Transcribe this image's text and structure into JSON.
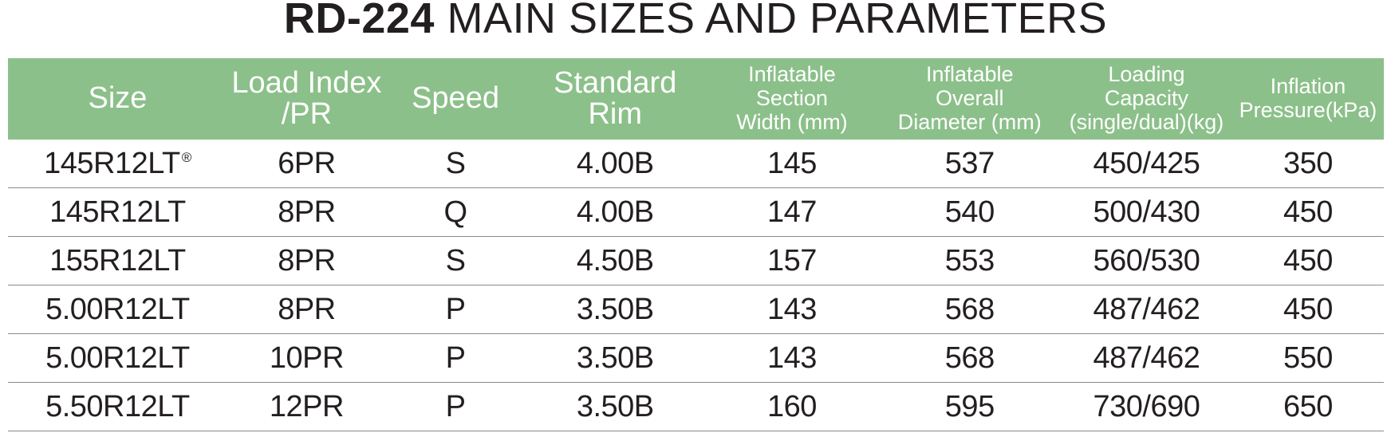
{
  "title": {
    "model": "RD-224",
    "rest": "MAIN SIZES AND PARAMETERS"
  },
  "table": {
    "headers": [
      {
        "lines": [
          "Size"
        ],
        "size": "big"
      },
      {
        "lines": [
          "Load Index",
          "/PR"
        ],
        "size": "big"
      },
      {
        "lines": [
          "Speed"
        ],
        "size": "big"
      },
      {
        "lines": [
          "Standard",
          "Rim"
        ],
        "size": "big"
      },
      {
        "lines": [
          "Inflatable",
          "Section",
          "Width (mm)"
        ],
        "size": "small"
      },
      {
        "lines": [
          "Inflatable",
          "Overall",
          "Diameter (mm)"
        ],
        "size": "small"
      },
      {
        "lines": [
          "Loading",
          "Capacity",
          "(single/dual)(kg)"
        ],
        "size": "small"
      },
      {
        "lines": [
          "Inflation",
          "Pressure(kPa)"
        ],
        "size": "small"
      }
    ],
    "rows": [
      {
        "size": "145R12LT",
        "mark": "®",
        "load_index": "6PR",
        "speed": "S",
        "rim": "4.00B",
        "width": "145",
        "diameter": "537",
        "capacity": "450/425",
        "pressure": "350"
      },
      {
        "size": "145R12LT",
        "mark": "",
        "load_index": "8PR",
        "speed": "Q",
        "rim": "4.00B",
        "width": "147",
        "diameter": "540",
        "capacity": "500/430",
        "pressure": "450"
      },
      {
        "size": "155R12LT",
        "mark": "",
        "load_index": "8PR",
        "speed": "S",
        "rim": "4.50B",
        "width": "157",
        "diameter": "553",
        "capacity": "560/530",
        "pressure": "450"
      },
      {
        "size": "5.00R12LT",
        "mark": "",
        "load_index": "8PR",
        "speed": "P",
        "rim": "3.50B",
        "width": "143",
        "diameter": "568",
        "capacity": "487/462",
        "pressure": "450"
      },
      {
        "size": "5.00R12LT",
        "mark": "",
        "load_index": "10PR",
        "speed": "P",
        "rim": "3.50B",
        "width": "143",
        "diameter": "568",
        "capacity": "487/462",
        "pressure": "550"
      },
      {
        "size": "5.50R12LT",
        "mark": "",
        "load_index": "12PR",
        "speed": "P",
        "rim": "3.50B",
        "width": "160",
        "diameter": "595",
        "capacity": "730/690",
        "pressure": "650"
      }
    ]
  }
}
